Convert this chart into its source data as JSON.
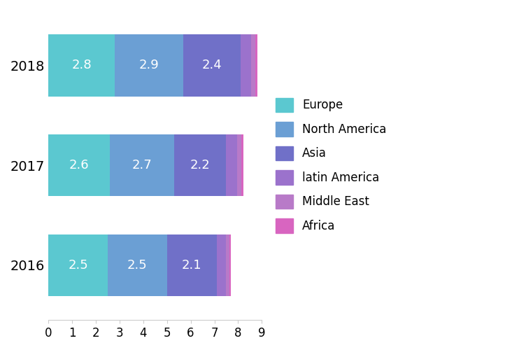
{
  "years": [
    "2018",
    "2017",
    "2016"
  ],
  "segments": {
    "Europe": {
      "values": [
        2.8,
        2.6,
        2.5
      ],
      "color": "#5BC8D0"
    },
    "North America": {
      "values": [
        2.9,
        2.7,
        2.5
      ],
      "color": "#6B9FD4"
    },
    "Asia": {
      "values": [
        2.4,
        2.2,
        2.1
      ],
      "color": "#7070C8"
    },
    "latin America": {
      "values": [
        0.45,
        0.45,
        0.38
      ],
      "color": "#9B72CC"
    },
    "Middle East": {
      "values": [
        0.18,
        0.18,
        0.14
      ],
      "color": "#B87AC8"
    },
    "Africa": {
      "values": [
        0.09,
        0.09,
        0.07
      ],
      "color": "#D865C0"
    }
  },
  "xlim": [
    0,
    9
  ],
  "xticks": [
    0,
    1,
    2,
    3,
    4,
    5,
    6,
    7,
    8,
    9
  ],
  "bar_height": 0.62,
  "label_color": "#ffffff",
  "label_fontsize": 13,
  "ytick_fontsize": 14,
  "xtick_fontsize": 12,
  "legend_fontsize": 12,
  "background_color": "#ffffff",
  "spine_color": "#cccccc"
}
